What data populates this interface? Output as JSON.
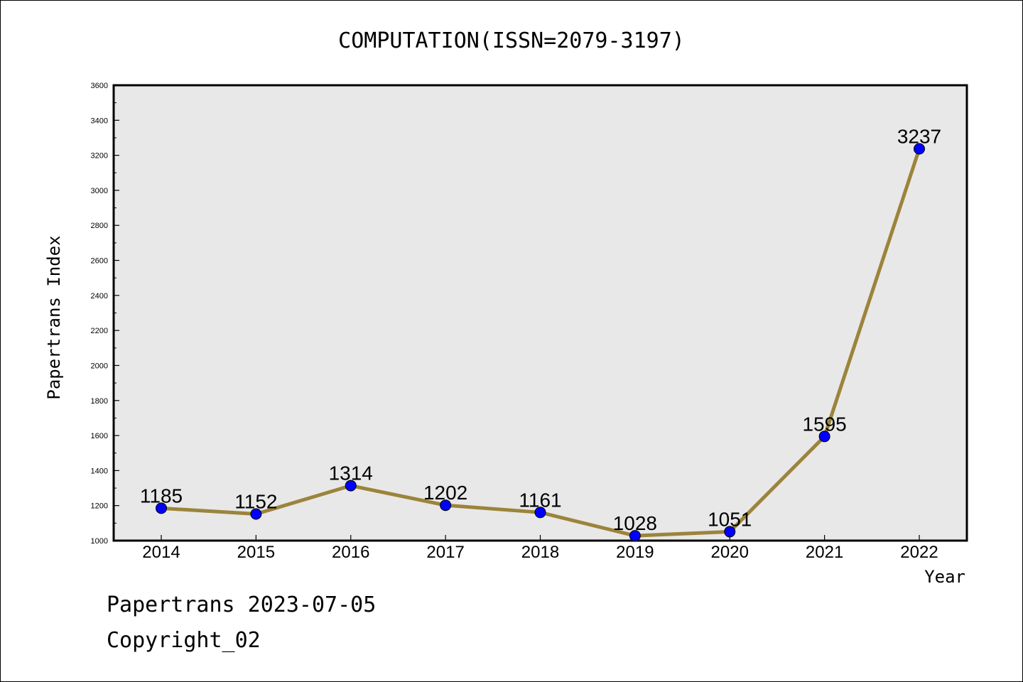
{
  "chart_data": {
    "type": "line",
    "title": "COMPUTATION(ISSN=2079-3197)",
    "xlabel": "Year",
    "ylabel": "Papertrans Index",
    "categories": [
      "2014",
      "2015",
      "2016",
      "2017",
      "2018",
      "2019",
      "2020",
      "2021",
      "2022"
    ],
    "values": [
      1185,
      1152,
      1314,
      1202,
      1161,
      1028,
      1051,
      1595,
      3237
    ],
    "ylim": [
      1000,
      3600
    ],
    "yticks": [
      1000,
      1200,
      1400,
      1600,
      1800,
      2000,
      2200,
      2400,
      2600,
      2800,
      3000,
      3200,
      3400,
      3600
    ],
    "grid": false,
    "line_color": "#9b843b",
    "marker_color": "#0000ff",
    "plot_background": "#e8e8e8"
  },
  "footer": {
    "line1": "Papertrans 2023-07-05",
    "line2": "Copyright_02"
  }
}
